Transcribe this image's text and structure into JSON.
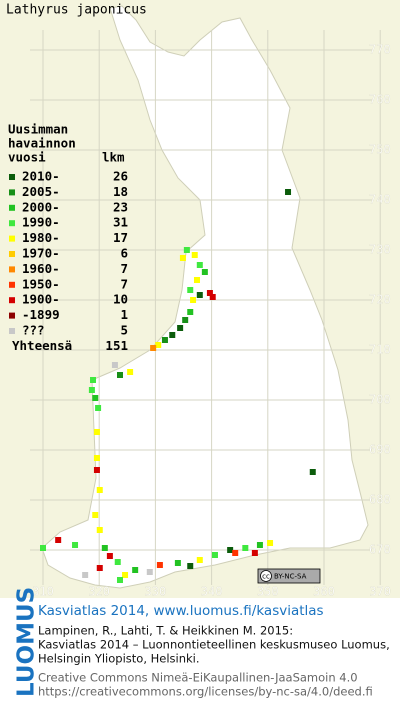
{
  "title": "Lathyrus japonicus",
  "legend": {
    "heading": [
      "Uusimman",
      "havainnon",
      "vuosi"
    ],
    "count_heading": "lkm",
    "items": [
      {
        "label": "2010-",
        "count": 26,
        "color": "#0b5c0b"
      },
      {
        "label": "2005-",
        "count": 18,
        "color": "#178f17"
      },
      {
        "label": "2000-",
        "count": 23,
        "color": "#22c222"
      },
      {
        "label": "1990-",
        "count": 31,
        "color": "#3fe83f"
      },
      {
        "label": "1980-",
        "count": 17,
        "color": "#ffff00"
      },
      {
        "label": "1970-",
        "count": 6,
        "color": "#ffcc00"
      },
      {
        "label": "1960-",
        "count": 7,
        "color": "#ff8800"
      },
      {
        "label": "1950-",
        "count": 7,
        "color": "#ff3300"
      },
      {
        "label": "1900-",
        "count": 10,
        "color": "#d40000"
      },
      {
        "label": "-1899",
        "count": 1,
        "color": "#8c0000"
      },
      {
        "label": "???",
        "count": 5,
        "color": "#c8c8c8"
      }
    ],
    "total_label": "Yhteensä",
    "total": 151
  },
  "grid": {
    "x_labels": [
      310,
      320,
      330,
      340,
      350,
      360,
      370
    ],
    "y_labels": [
      670,
      680,
      690,
      700,
      710,
      720,
      730,
      740,
      750,
      760,
      770
    ]
  },
  "observations": [
    [
      353.6,
      741.6,
      0
    ],
    [
      358,
      685.6,
      0
    ],
    [
      335.6,
      730,
      3
    ],
    [
      334.9,
      728.4,
      4
    ],
    [
      337,
      729,
      4
    ],
    [
      337.9,
      727,
      3
    ],
    [
      338.8,
      725.6,
      2
    ],
    [
      337.4,
      724,
      4
    ],
    [
      336.2,
      722,
      3
    ],
    [
      337.9,
      721,
      0
    ],
    [
      339.7,
      721.4,
      8
    ],
    [
      340.2,
      720.6,
      8
    ],
    [
      336.7,
      720,
      4
    ],
    [
      336.2,
      717.6,
      2
    ],
    [
      335.3,
      716,
      1
    ],
    [
      334.4,
      714.4,
      0
    ],
    [
      333,
      713,
      0
    ],
    [
      331.7,
      712,
      1
    ],
    [
      330.5,
      711,
      4
    ],
    [
      329.6,
      710.4,
      6
    ],
    [
      325.5,
      705.6,
      4
    ],
    [
      323.7,
      705,
      1
    ],
    [
      322.8,
      707,
      10
    ],
    [
      318.9,
      704,
      3
    ],
    [
      318.7,
      702,
      3
    ],
    [
      319.3,
      700.4,
      2
    ],
    [
      319.8,
      698.4,
      3
    ],
    [
      319.6,
      693.6,
      4
    ],
    [
      319.6,
      688.4,
      4
    ],
    [
      319.6,
      686,
      8
    ],
    [
      320.1,
      682,
      4
    ],
    [
      319.3,
      677,
      4
    ],
    [
      320.1,
      674,
      4
    ],
    [
      310,
      670.4,
      3
    ],
    [
      312.7,
      672,
      8
    ],
    [
      315.7,
      671,
      3
    ],
    [
      321,
      670.4,
      2
    ],
    [
      321.9,
      668.8,
      8
    ],
    [
      323.3,
      667.6,
      3
    ],
    [
      324.6,
      665,
      4
    ],
    [
      323.7,
      664,
      3
    ],
    [
      326.4,
      666,
      2
    ],
    [
      320.1,
      666.4,
      8
    ],
    [
      317.5,
      665,
      10
    ],
    [
      330.8,
      667,
      7
    ],
    [
      334,
      667.4,
      2
    ],
    [
      336.2,
      666.8,
      0
    ],
    [
      340.6,
      669,
      3
    ],
    [
      343.3,
      670,
      0
    ],
    [
      346,
      670.4,
      3
    ],
    [
      348.6,
      671,
      2
    ],
    [
      350.4,
      671.4,
      4
    ],
    [
      347.7,
      669.4,
      8
    ],
    [
      344.2,
      669.4,
      7
    ],
    [
      337.9,
      668,
      4
    ],
    [
      329,
      665.6,
      10
    ]
  ],
  "badge": [
    "cc",
    "BY-NC-SA"
  ],
  "footer": {
    "link": "Kasviatlas 2014, www.luomus.fi/kasviatlas",
    "citation": [
      "Lampinen, R., Lahti, T. & Heikkinen M. 2015:",
      "Kasviatlas 2014 – Luonnontieteellinen keskusmuseo Luomus,",
      "Helsingin Yliopisto, Helsinki."
    ],
    "license": [
      "Creative Commons Nimeä-EiKaupallinen-JaaSamoin 4.0",
      "https://creativecommons.org/licenses/by-nc-sa/4.0/deed.fi"
    ]
  },
  "logo": "LUOMUS"
}
